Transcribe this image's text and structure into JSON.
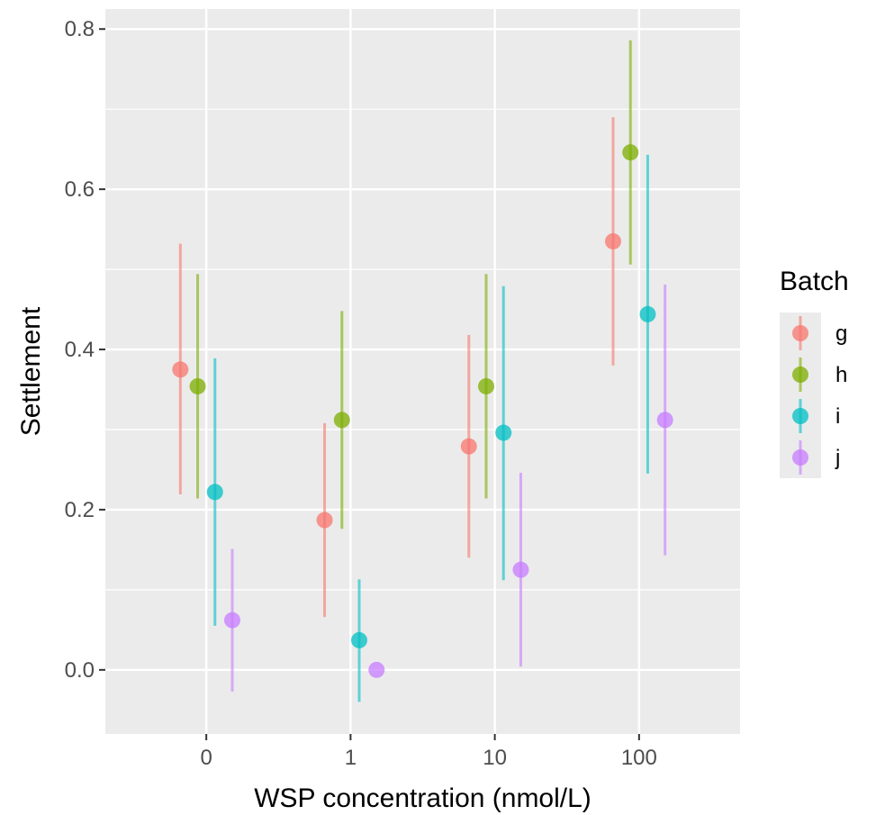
{
  "chart_data": {
    "type": "scatter",
    "title": "",
    "xlabel": "WSP concentration (nmol/L)",
    "ylabel": "Settlement",
    "categories": [
      "0",
      "1",
      "10",
      "100"
    ],
    "ylim": [
      -0.08,
      0.825
    ],
    "yticks": [
      "0.0",
      "0.2",
      "0.4",
      "0.6",
      "0.8"
    ],
    "grid": true,
    "legend": {
      "title": "Batch",
      "position": "right"
    },
    "series": [
      {
        "name": "g",
        "color": "#F8766D",
        "values": [
          0.375,
          0.187,
          0.279,
          0.535
        ],
        "lower": [
          0.219,
          0.066,
          0.14,
          0.38
        ],
        "upper": [
          0.532,
          0.308,
          0.418,
          0.69
        ]
      },
      {
        "name": "h",
        "color": "#7CAE00",
        "values": [
          0.354,
          0.312,
          0.354,
          0.646
        ],
        "lower": [
          0.214,
          0.176,
          0.214,
          0.506
        ],
        "upper": [
          0.494,
          0.448,
          0.494,
          0.786
        ]
      },
      {
        "name": "i",
        "color": "#00BFC4",
        "values": [
          0.222,
          0.037,
          0.296,
          0.444
        ],
        "lower": [
          0.055,
          -0.04,
          0.112,
          0.245
        ],
        "upper": [
          0.389,
          0.113,
          0.479,
          0.643
        ]
      },
      {
        "name": "j",
        "color": "#C77CFF",
        "values": [
          0.062,
          0.0,
          0.125,
          0.312
        ],
        "lower": [
          -0.027,
          0.0,
          0.004,
          0.143
        ],
        "upper": [
          0.151,
          0.0,
          0.246,
          0.481
        ]
      }
    ]
  }
}
